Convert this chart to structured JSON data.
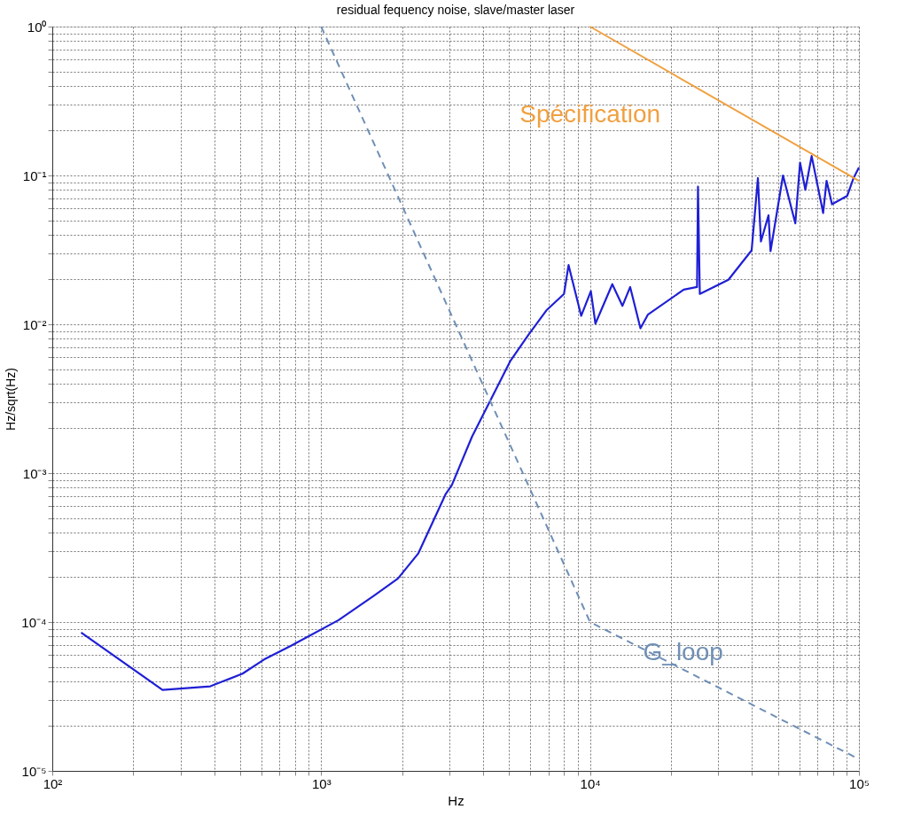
{
  "chart_data": {
    "type": "line",
    "title": "residual fequency noise, slave/master laser",
    "xlabel": "Hz",
    "ylabel": "Hz/sqrt(Hz)",
    "log": "xy",
    "grid": true,
    "marker": "none",
    "xlim": [
      100,
      100000
    ],
    "ylim": [
      1e-05,
      1
    ],
    "xticks": [
      {
        "value": 100,
        "label": "10²"
      },
      {
        "value": 200,
        "label": null
      },
      {
        "value": 300,
        "label": null
      },
      {
        "value": 400,
        "label": null
      },
      {
        "value": 500,
        "label": null
      },
      {
        "value": 600,
        "label": null
      },
      {
        "value": 700,
        "label": null
      },
      {
        "value": 800,
        "label": null
      },
      {
        "value": 900,
        "label": null
      },
      {
        "value": 1000,
        "label": "10³"
      },
      {
        "value": 2000,
        "label": null
      },
      {
        "value": 3000,
        "label": null
      },
      {
        "value": 4000,
        "label": null
      },
      {
        "value": 5000,
        "label": null
      },
      {
        "value": 6000,
        "label": null
      },
      {
        "value": 7000,
        "label": null
      },
      {
        "value": 8000,
        "label": null
      },
      {
        "value": 9000,
        "label": null
      },
      {
        "value": 10000,
        "label": "10⁴"
      },
      {
        "value": 20000,
        "label": null
      },
      {
        "value": 30000,
        "label": null
      },
      {
        "value": 40000,
        "label": null
      },
      {
        "value": 50000,
        "label": null
      },
      {
        "value": 60000,
        "label": null
      },
      {
        "value": 70000,
        "label": null
      },
      {
        "value": 80000,
        "label": null
      },
      {
        "value": 90000,
        "label": null
      },
      {
        "value": 100000,
        "label": "10⁵"
      }
    ],
    "yticks": [
      {
        "value": 1e-05,
        "label": "10⁻⁵"
      },
      {
        "value": 2e-05,
        "label": null
      },
      {
        "value": 3e-05,
        "label": null
      },
      {
        "value": 4e-05,
        "label": null
      },
      {
        "value": 5e-05,
        "label": null
      },
      {
        "value": 6e-05,
        "label": null
      },
      {
        "value": 7e-05,
        "label": null
      },
      {
        "value": 8e-05,
        "label": null
      },
      {
        "value": 9e-05,
        "label": null
      },
      {
        "value": 0.0001,
        "label": "10⁻⁴"
      },
      {
        "value": 0.0002,
        "label": null
      },
      {
        "value": 0.0003,
        "label": null
      },
      {
        "value": 0.0004,
        "label": null
      },
      {
        "value": 0.0005,
        "label": null
      },
      {
        "value": 0.0006,
        "label": null
      },
      {
        "value": 0.0007,
        "label": null
      },
      {
        "value": 0.0008,
        "label": null
      },
      {
        "value": 0.0009,
        "label": null
      },
      {
        "value": 0.001,
        "label": "10⁻³"
      },
      {
        "value": 0.002,
        "label": null
      },
      {
        "value": 0.003,
        "label": null
      },
      {
        "value": 0.004,
        "label": null
      },
      {
        "value": 0.005,
        "label": null
      },
      {
        "value": 0.006,
        "label": null
      },
      {
        "value": 0.007,
        "label": null
      },
      {
        "value": 0.008,
        "label": null
      },
      {
        "value": 0.009,
        "label": null
      },
      {
        "value": 0.01,
        "label": "10⁻²"
      },
      {
        "value": 0.02,
        "label": null
      },
      {
        "value": 0.03,
        "label": null
      },
      {
        "value": 0.04,
        "label": null
      },
      {
        "value": 0.05,
        "label": null
      },
      {
        "value": 0.06,
        "label": null
      },
      {
        "value": 0.07,
        "label": null
      },
      {
        "value": 0.08,
        "label": null
      },
      {
        "value": 0.09,
        "label": null
      },
      {
        "value": 0.1,
        "label": "10⁻¹"
      },
      {
        "value": 0.2,
        "label": null
      },
      {
        "value": 0.3,
        "label": null
      },
      {
        "value": 0.4,
        "label": null
      },
      {
        "value": 0.5,
        "label": null
      },
      {
        "value": 0.6,
        "label": null
      },
      {
        "value": 0.7,
        "label": null
      },
      {
        "value": 0.8,
        "label": null
      },
      {
        "value": 0.9,
        "label": null
      },
      {
        "value": 1,
        "label": "10⁰"
      }
    ],
    "series": [
      {
        "color": "#1f1fd6",
        "line_style": "solid",
        "x": [
          128,
          257,
          387,
          510,
          613,
          770,
          1160,
          1570,
          1930,
          2300,
          2900,
          3060,
          3640,
          4340,
          5060,
          5900,
          6880,
          8000,
          8320,
          9270,
          10070,
          10470,
          12100,
          13200,
          14100,
          15400,
          16400,
          22300,
          25000,
          25200,
          25600,
          32700,
          39900,
          42100,
          43200,
          46100,
          46900,
          52200,
          58000,
          60400,
          63200,
          66700,
          73600,
          75800,
          79400,
          90500,
          95500,
          100000
        ],
        "values": [
          8.5e-05,
          3.5e-05,
          3.7e-05,
          4.5e-05,
          5.6e-05,
          6.9e-05,
          0.000103,
          0.00015,
          0.000196,
          0.00029,
          0.00072,
          0.00083,
          0.00176,
          0.0033,
          0.0057,
          0.0085,
          0.0124,
          0.016,
          0.025,
          0.0114,
          0.0167,
          0.0101,
          0.0186,
          0.0133,
          0.0178,
          0.0094,
          0.0116,
          0.0171,
          0.0178,
          0.084,
          0.016,
          0.0199,
          0.0314,
          0.096,
          0.036,
          0.054,
          0.031,
          0.1,
          0.0477,
          0.122,
          0.08,
          0.135,
          0.056,
          0.092,
          0.064,
          0.073,
          0.096,
          0.113
        ]
      },
      {
        "name": "Spécification",
        "color": "#f0a040",
        "line_style": "solid",
        "x": [
          10000,
          100000
        ],
        "values": [
          1,
          0.092
        ]
      },
      {
        "name": "G_loop",
        "color": "#6f8fb5",
        "line_style": "dashed",
        "x": [
          1000,
          10000,
          100000
        ],
        "values": [
          1,
          0.0001,
          1.2e-05
        ]
      }
    ]
  }
}
